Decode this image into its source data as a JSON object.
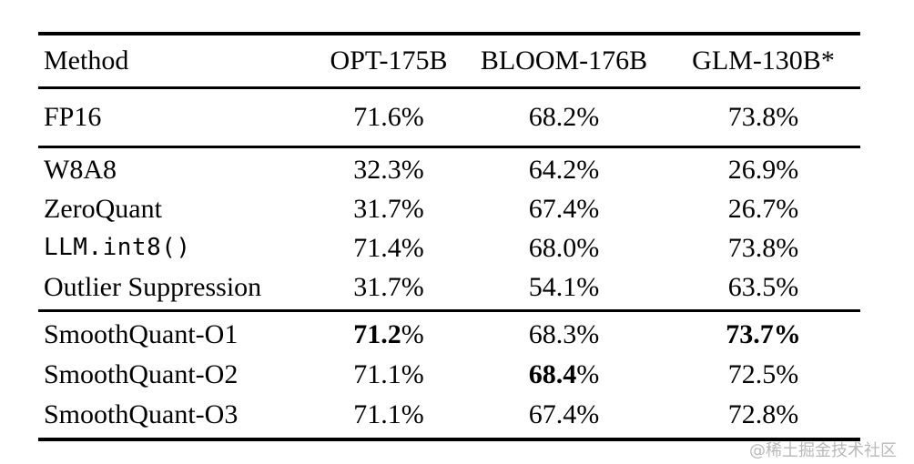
{
  "watermark": {
    "text": "@稀土掘金技术社区"
  },
  "table": {
    "headers": [
      "Method",
      "OPT-175B",
      "BLOOM-176B",
      "GLM-130B*"
    ],
    "groups": [
      {
        "rows": [
          {
            "method": "FP16",
            "mono": false,
            "values": [
              {
                "text": "71.6%",
                "bold": "none"
              },
              {
                "text": "68.2%",
                "bold": "none"
              },
              {
                "text": "73.8%",
                "bold": "none"
              }
            ]
          }
        ]
      },
      {
        "rows": [
          {
            "method": "W8A8",
            "mono": false,
            "values": [
              {
                "text": "32.3%",
                "bold": "none"
              },
              {
                "text": "64.2%",
                "bold": "none"
              },
              {
                "text": "26.9%",
                "bold": "none"
              }
            ]
          },
          {
            "method": "ZeroQuant",
            "mono": false,
            "values": [
              {
                "text": "31.7%",
                "bold": "none"
              },
              {
                "text": "67.4%",
                "bold": "none"
              },
              {
                "text": "26.7%",
                "bold": "none"
              }
            ]
          },
          {
            "method": "LLM.int8()",
            "mono": true,
            "values": [
              {
                "text": "71.4%",
                "bold": "none"
              },
              {
                "text": "68.0%",
                "bold": "none"
              },
              {
                "text": "73.8%",
                "bold": "none"
              }
            ]
          },
          {
            "method": "Outlier Suppression",
            "mono": false,
            "values": [
              {
                "text": "31.7%",
                "bold": "none"
              },
              {
                "text": "54.1%",
                "bold": "none"
              },
              {
                "text": "63.5%",
                "bold": "none"
              }
            ]
          }
        ]
      },
      {
        "rows": [
          {
            "method": "SmoothQuant-O1",
            "mono": false,
            "values": [
              {
                "text": "71.2%",
                "bold": "num"
              },
              {
                "text": "68.3%",
                "bold": "none"
              },
              {
                "text": "73.7%",
                "bold": "all"
              }
            ]
          },
          {
            "method": "SmoothQuant-O2",
            "mono": false,
            "values": [
              {
                "text": "71.1%",
                "bold": "none"
              },
              {
                "text": "68.4%",
                "bold": "num"
              },
              {
                "text": "72.5%",
                "bold": "none"
              }
            ]
          },
          {
            "method": "SmoothQuant-O3",
            "mono": false,
            "values": [
              {
                "text": "71.1%",
                "bold": "none"
              },
              {
                "text": "67.4%",
                "bold": "none"
              },
              {
                "text": "72.8%",
                "bold": "none"
              }
            ]
          }
        ]
      }
    ]
  }
}
